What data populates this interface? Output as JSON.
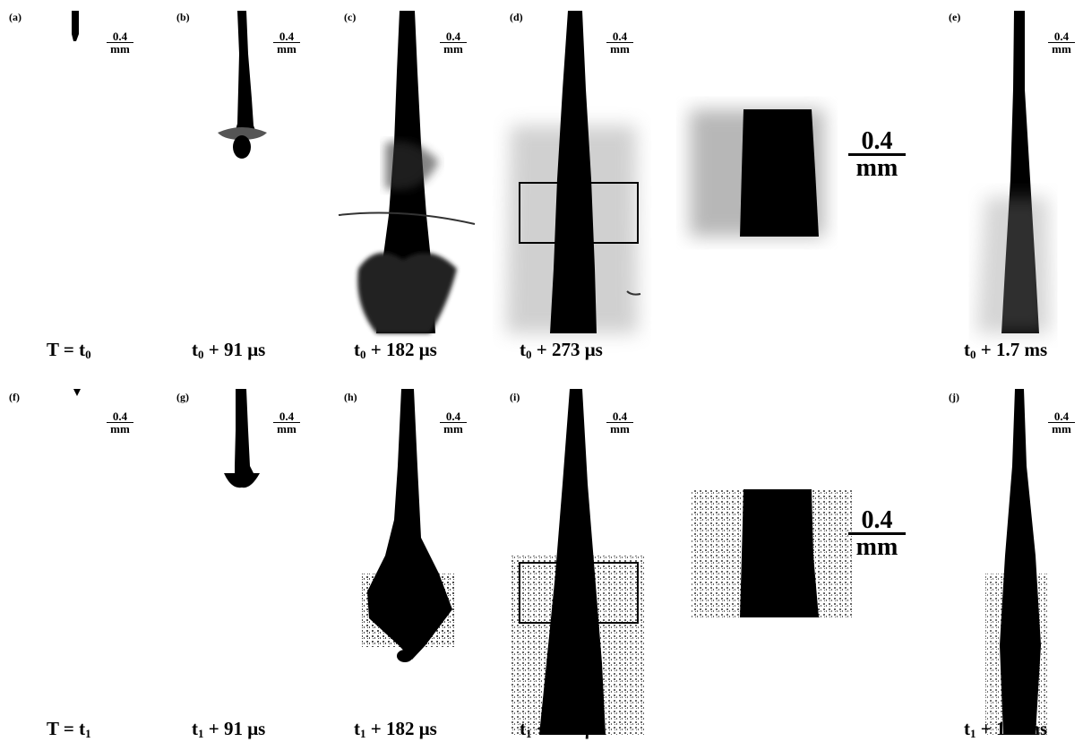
{
  "panels": {
    "a": {
      "label": "(a)",
      "scale_num": "0.4",
      "scale_unit": "mm",
      "caption_pre": "T = t",
      "caption_sub": "0",
      "caption_post": ""
    },
    "b": {
      "label": "(b)",
      "scale_num": "0.4",
      "scale_unit": "mm",
      "caption_pre": "t",
      "caption_sub": "0",
      "caption_post": " + 91 μs"
    },
    "c": {
      "label": "(c)",
      "scale_num": "0.4",
      "scale_unit": "mm",
      "caption_pre": "t",
      "caption_sub": "0",
      "caption_post": " + 182 μs"
    },
    "d": {
      "label": "(d)",
      "scale_num": "0.4",
      "scale_unit": "mm",
      "caption_pre": "t",
      "caption_sub": "0",
      "caption_post": " + 273 μs"
    },
    "d_zoom": {
      "scale_num": "0.4",
      "scale_unit": "mm"
    },
    "e": {
      "label": "(e)",
      "scale_num": "0.4",
      "scale_unit": "mm",
      "caption_pre": "t",
      "caption_sub": "0",
      "caption_post": " + 1.7 ms"
    },
    "f": {
      "label": "(f)",
      "scale_num": "0.4",
      "scale_unit": "mm",
      "caption_pre": "T = t",
      "caption_sub": "1",
      "caption_post": ""
    },
    "g": {
      "label": "(g)",
      "scale_num": "0.4",
      "scale_unit": "mm",
      "caption_pre": "t",
      "caption_sub": "1",
      "caption_post": " + 91 μs"
    },
    "h": {
      "label": "(h)",
      "scale_num": "0.4",
      "scale_unit": "mm",
      "caption_pre": "t",
      "caption_sub": "1",
      "caption_post": " + 182 μs"
    },
    "i": {
      "label": "(i)",
      "scale_num": "0.4",
      "scale_unit": "mm",
      "caption_pre": "t",
      "caption_sub": "1",
      "caption_post": " + 273 μs"
    },
    "i_zoom": {
      "scale_num": "0.4",
      "scale_unit": "mm"
    },
    "j": {
      "label": "(j)",
      "scale_num": "0.4",
      "scale_unit": "mm",
      "caption_pre": "t",
      "caption_sub": "1",
      "caption_post": " + 1.7 ms"
    }
  },
  "colors": {
    "ink": "#000000",
    "mist": "#6b6b6b",
    "background": "#ffffff"
  }
}
